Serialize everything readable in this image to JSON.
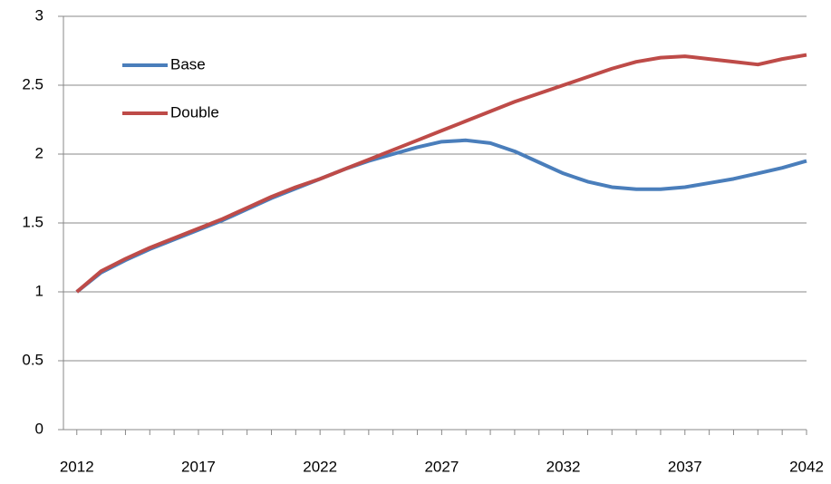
{
  "chart_data": {
    "type": "line",
    "x": [
      2012,
      2013,
      2014,
      2015,
      2016,
      2017,
      2018,
      2019,
      2020,
      2021,
      2022,
      2023,
      2024,
      2025,
      2026,
      2027,
      2028,
      2029,
      2030,
      2031,
      2032,
      2033,
      2034,
      2035,
      2036,
      2037,
      2038,
      2039,
      2040,
      2041,
      2042
    ],
    "series": [
      {
        "name": "Base",
        "color": "#4a7ebb",
        "values": [
          1.0,
          1.14,
          1.23,
          1.31,
          1.38,
          1.45,
          1.52,
          1.6,
          1.68,
          1.75,
          1.82,
          1.89,
          1.95,
          2.0,
          2.05,
          2.09,
          2.1,
          2.08,
          2.02,
          1.94,
          1.86,
          1.8,
          1.76,
          1.745,
          1.745,
          1.76,
          1.79,
          1.82,
          1.86,
          1.9,
          1.95
        ]
      },
      {
        "name": "Double",
        "color": "#be4b48",
        "values": [
          1.0,
          1.15,
          1.24,
          1.32,
          1.39,
          1.46,
          1.53,
          1.61,
          1.69,
          1.76,
          1.82,
          1.89,
          1.96,
          2.03,
          2.1,
          2.17,
          2.24,
          2.31,
          2.38,
          2.44,
          2.5,
          2.56,
          2.62,
          2.67,
          2.7,
          2.71,
          2.69,
          2.67,
          2.65,
          2.69,
          2.72
        ]
      }
    ],
    "xlim": [
      2011.45,
      2042
    ],
    "xticks": [
      2012,
      2017,
      2022,
      2027,
      2032,
      2037,
      2042
    ],
    "ylim": [
      0,
      3
    ],
    "yticks": [
      0,
      0.5,
      1,
      1.5,
      2,
      2.5,
      3
    ],
    "grid": true,
    "legend": "upper-left"
  }
}
